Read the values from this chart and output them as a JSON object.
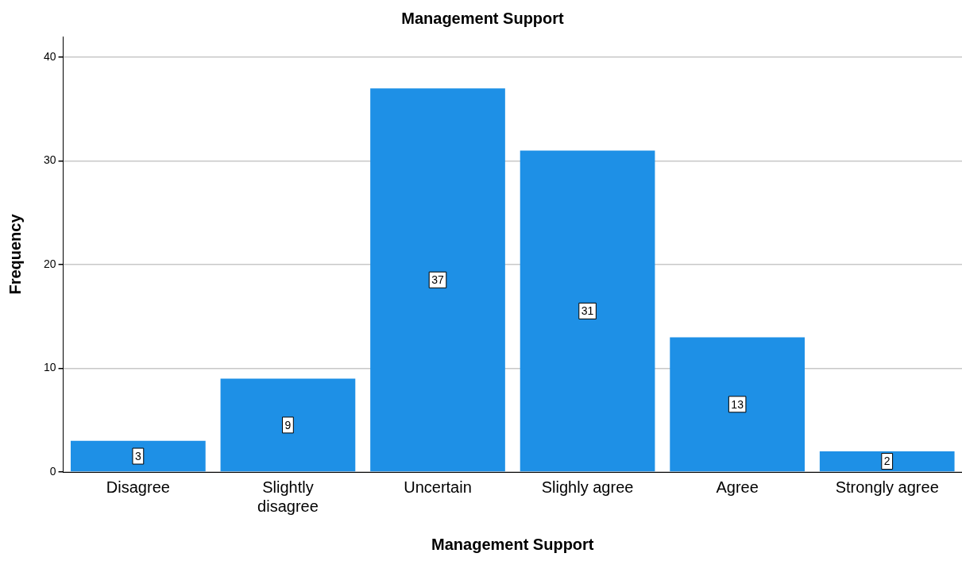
{
  "chart_data": {
    "type": "bar",
    "title": "Management Support",
    "xlabel": "Management Support",
    "ylabel": "Frequency",
    "categories": [
      "Disagree",
      "Slightly disagree",
      "Uncertain",
      "Slighly agree",
      "Agree",
      "Strongly agree"
    ],
    "values": [
      3,
      9,
      37,
      31,
      13,
      2
    ],
    "color": "#1e90e6",
    "ylim": [
      0,
      42
    ],
    "yticks": [
      0,
      10,
      20,
      30,
      40
    ],
    "grid": "y",
    "data_labels": true,
    "legend": false
  }
}
